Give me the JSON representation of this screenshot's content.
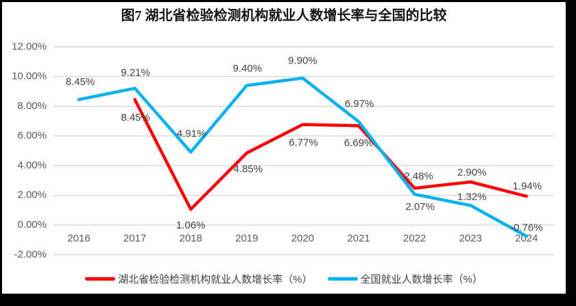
{
  "page": {
    "background_color": "#000000",
    "panel_color": "#FFFFFF"
  },
  "chart_data": {
    "type": "line",
    "title": "图7 湖北省检验检测机构就业人数增长率与全国的比较",
    "categories": [
      "2016",
      "2017",
      "2018",
      "2019",
      "2020",
      "2021",
      "2022",
      "2023",
      "2024"
    ],
    "series": [
      {
        "name": "湖北省检验检测机构就业人数增长率（%）",
        "color": "#FE0000",
        "values": [
          null,
          8.45,
          1.06,
          4.85,
          6.77,
          6.69,
          2.48,
          2.9,
          1.94
        ],
        "labels": [
          null,
          "8.45%",
          "1.06%",
          "4.85%",
          "6.77%",
          "6.69%",
          "2.48%",
          "2.90%",
          "1.94%"
        ]
      },
      {
        "name": "全国就业人数增长率（%）",
        "color": "#00B0F0",
        "values": [
          8.45,
          9.21,
          4.91,
          9.4,
          9.9,
          6.97,
          2.07,
          1.32,
          -0.76
        ],
        "labels": [
          "8.45%",
          "9.21%",
          "4.91%",
          "9.40%",
          "9.90%",
          "6.97%",
          "2.07%",
          "1.32%",
          "-0.76%"
        ]
      }
    ],
    "y_axis": {
      "min": -2,
      "max": 12,
      "step": 2,
      "tick_labels": [
        "12.00%",
        "10.00%",
        "8.00%",
        "6.00%",
        "4.00%",
        "2.00%",
        "0.00%",
        "-2.00%"
      ]
    },
    "grid": true,
    "legend_position": "bottom",
    "colors": {
      "grid_line": "#DBDBDB",
      "axis_tick_text": "#595959",
      "data_label_text": "#404040"
    }
  }
}
